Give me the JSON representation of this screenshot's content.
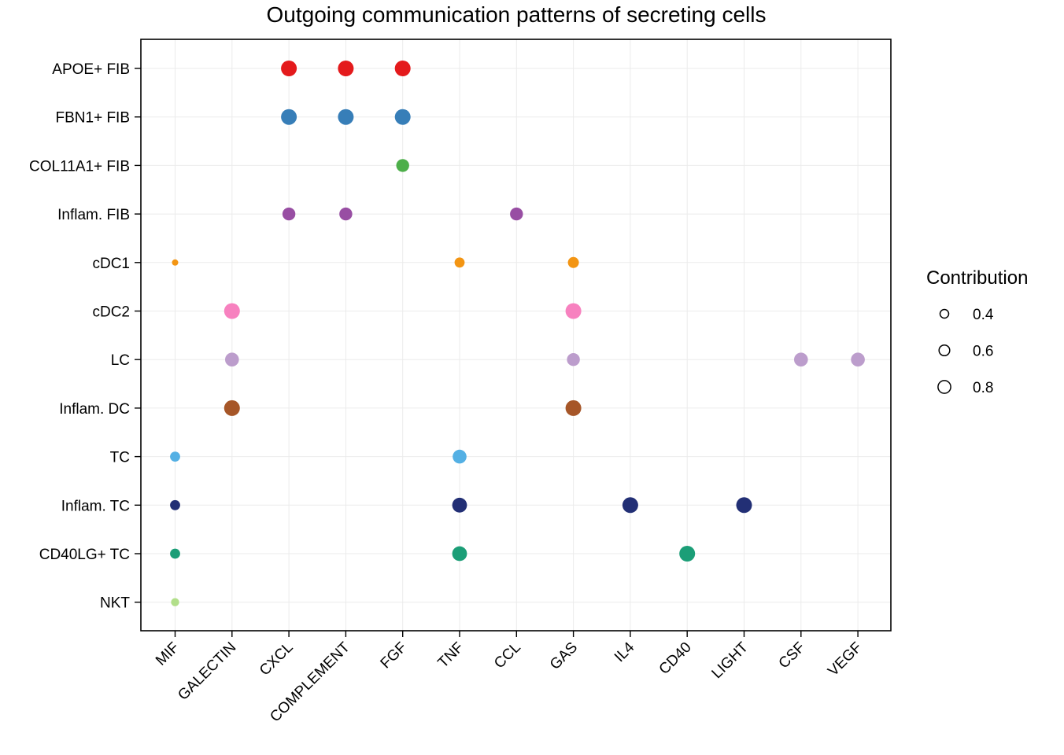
{
  "chart_data": {
    "type": "scatter",
    "title": "Outgoing communication patterns of secreting cells",
    "xlabel": "",
    "ylabel": "",
    "x_categories": [
      "MIF",
      "GALECTIN",
      "CXCL",
      "COMPLEMENT",
      "FGF",
      "TNF",
      "CCL",
      "GAS",
      "IL4",
      "CD40",
      "LIGHT",
      "CSF",
      "VEGF"
    ],
    "y_categories": [
      "APOE+ FIB",
      "FBN1+ FIB",
      "COL11A1+ FIB",
      "Inflam. FIB",
      "cDC1",
      "cDC2",
      "LC",
      "Inflam. DC",
      "TC",
      "Inflam. TC",
      "CD40LG+ TC",
      "NKT"
    ],
    "grid": true,
    "legend": {
      "title": "Contribution",
      "position": "right",
      "sizes": [
        0.4,
        0.6,
        0.8
      ],
      "labels": [
        "0.4",
        "0.6",
        "0.8"
      ]
    },
    "colors": {
      "APOE+ FIB": "#e41a1c",
      "FBN1+ FIB": "#377eb8",
      "COL11A1+ FIB": "#4daf4a",
      "Inflam. FIB": "#984ea3",
      "cDC1": "#f39513",
      "cDC2": "#f781bf",
      "LC": "#bc9dcc",
      "Inflam. DC": "#a65628",
      "TC": "#54b0e4",
      "Inflam. TC": "#222f75",
      "CD40LG+ TC": "#1b9e77",
      "NKT": "#b2df8a"
    },
    "points": [
      {
        "x": "CXCL",
        "y": "APOE+ FIB",
        "contribution": 0.85
      },
      {
        "x": "COMPLEMENT",
        "y": "APOE+ FIB",
        "contribution": 0.85
      },
      {
        "x": "FGF",
        "y": "APOE+ FIB",
        "contribution": 0.85
      },
      {
        "x": "CXCL",
        "y": "FBN1+ FIB",
        "contribution": 0.85
      },
      {
        "x": "COMPLEMENT",
        "y": "FBN1+ FIB",
        "contribution": 0.85
      },
      {
        "x": "FGF",
        "y": "FBN1+ FIB",
        "contribution": 0.85
      },
      {
        "x": "FGF",
        "y": "COL11A1+ FIB",
        "contribution": 0.7
      },
      {
        "x": "CXCL",
        "y": "Inflam. FIB",
        "contribution": 0.7
      },
      {
        "x": "COMPLEMENT",
        "y": "Inflam. FIB",
        "contribution": 0.7
      },
      {
        "x": "CCL",
        "y": "Inflam. FIB",
        "contribution": 0.7
      },
      {
        "x": "MIF",
        "y": "cDC1",
        "contribution": 0.35
      },
      {
        "x": "TNF",
        "y": "cDC1",
        "contribution": 0.55
      },
      {
        "x": "GAS",
        "y": "cDC1",
        "contribution": 0.6
      },
      {
        "x": "GALECTIN",
        "y": "cDC2",
        "contribution": 0.85
      },
      {
        "x": "GAS",
        "y": "cDC2",
        "contribution": 0.85
      },
      {
        "x": "GALECTIN",
        "y": "LC",
        "contribution": 0.75
      },
      {
        "x": "GAS",
        "y": "LC",
        "contribution": 0.7
      },
      {
        "x": "CSF",
        "y": "LC",
        "contribution": 0.75
      },
      {
        "x": "VEGF",
        "y": "LC",
        "contribution": 0.75
      },
      {
        "x": "GALECTIN",
        "y": "Inflam. DC",
        "contribution": 0.85
      },
      {
        "x": "GAS",
        "y": "Inflam. DC",
        "contribution": 0.85
      },
      {
        "x": "MIF",
        "y": "TC",
        "contribution": 0.55
      },
      {
        "x": "TNF",
        "y": "TC",
        "contribution": 0.75
      },
      {
        "x": "MIF",
        "y": "Inflam. TC",
        "contribution": 0.55
      },
      {
        "x": "TNF",
        "y": "Inflam. TC",
        "contribution": 0.8
      },
      {
        "x": "IL4",
        "y": "Inflam. TC",
        "contribution": 0.85
      },
      {
        "x": "LIGHT",
        "y": "Inflam. TC",
        "contribution": 0.85
      },
      {
        "x": "MIF",
        "y": "CD40LG+ TC",
        "contribution": 0.55
      },
      {
        "x": "TNF",
        "y": "CD40LG+ TC",
        "contribution": 0.8
      },
      {
        "x": "CD40",
        "y": "CD40LG+ TC",
        "contribution": 0.85
      },
      {
        "x": "MIF",
        "y": "NKT",
        "contribution": 0.45
      }
    ]
  }
}
